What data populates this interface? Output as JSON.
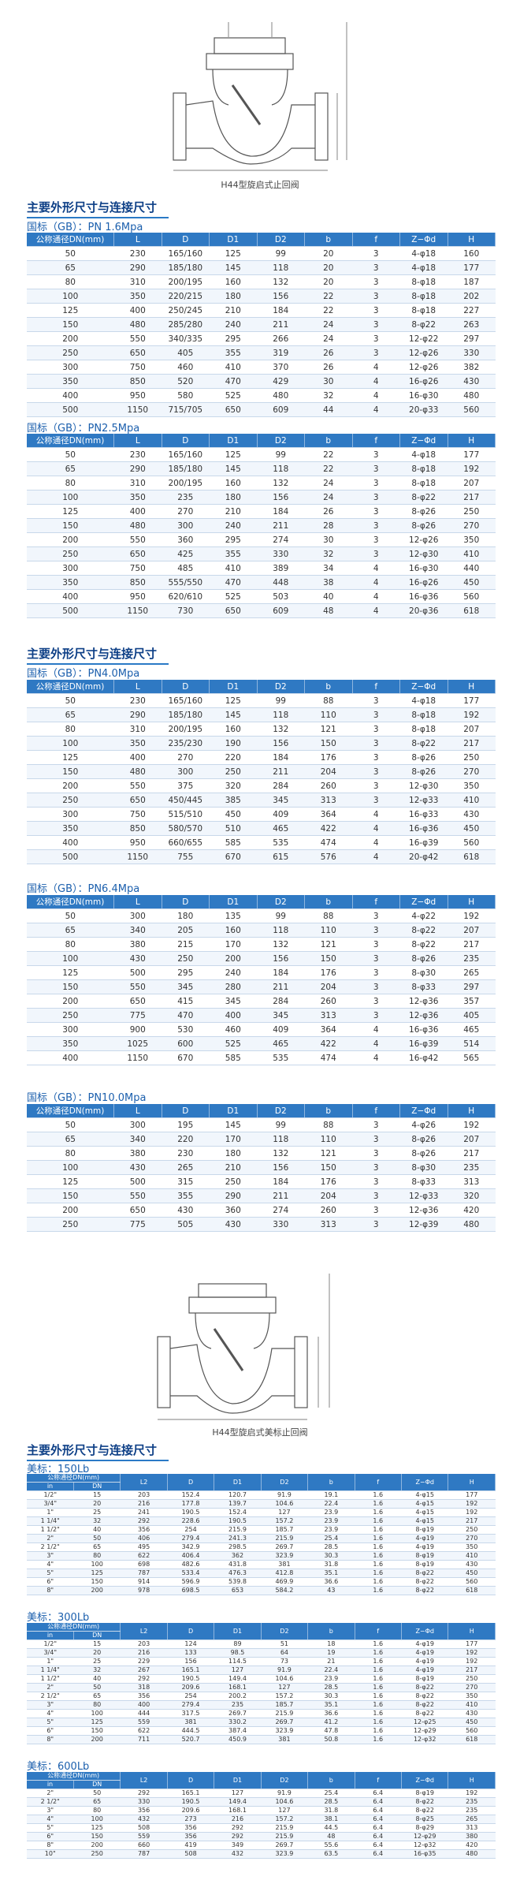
{
  "figure_1": {
    "caption": "H44型旋启式止回阀"
  },
  "section_1": {
    "title": "主要外形尺寸与连接尺寸",
    "tables": [
      {
        "label": "国标（GB）：PN 1.6Mpa",
        "columns": [
          "公称通径DN(mm)",
          "L",
          "D",
          "D1",
          "D2",
          "b",
          "f",
          "Z−Φd",
          "H"
        ],
        "rows": [
          [
            50,
            230,
            "165/160",
            125,
            99,
            20,
            3,
            "4-φ18",
            160
          ],
          [
            65,
            290,
            "185/180",
            145,
            118,
            20,
            3,
            "4-φ18",
            177
          ],
          [
            80,
            310,
            "200/195",
            160,
            132,
            20,
            3,
            "8-φ18",
            187
          ],
          [
            100,
            350,
            "220/215",
            180,
            156,
            22,
            3,
            "8-φ18",
            202
          ],
          [
            125,
            400,
            "250/245",
            210,
            184,
            22,
            3,
            "8-φ18",
            227
          ],
          [
            150,
            480,
            "285/280",
            240,
            211,
            24,
            3,
            "8-φ22",
            263
          ],
          [
            200,
            550,
            "340/335",
            295,
            266,
            24,
            3,
            "12-φ22",
            297
          ],
          [
            250,
            650,
            405,
            355,
            319,
            26,
            3,
            "12-φ26",
            330
          ],
          [
            300,
            750,
            460,
            410,
            370,
            26,
            4,
            "12-φ26",
            382
          ],
          [
            350,
            850,
            520,
            470,
            429,
            30,
            4,
            "16-φ26",
            430
          ],
          [
            400,
            950,
            580,
            525,
            480,
            32,
            4,
            "16-φ30",
            480
          ],
          [
            500,
            1150,
            "715/705",
            650,
            609,
            44,
            4,
            "20-φ33",
            560
          ]
        ]
      },
      {
        "label": "国标（GB）：PN2.5Mpa",
        "columns": [
          "公称通径DN(mm)",
          "L",
          "D",
          "D1",
          "D2",
          "b",
          "f",
          "Z−Φd",
          "H"
        ],
        "rows": [
          [
            50,
            230,
            "165/160",
            125,
            99,
            22,
            3,
            "4-φ18",
            177
          ],
          [
            65,
            290,
            "185/180",
            145,
            118,
            22,
            3,
            "8-φ18",
            192
          ],
          [
            80,
            310,
            "200/195",
            160,
            132,
            24,
            3,
            "8-φ18",
            207
          ],
          [
            100,
            350,
            235,
            180,
            156,
            24,
            3,
            "8-φ22",
            217
          ],
          [
            125,
            400,
            270,
            210,
            184,
            26,
            3,
            "8-φ26",
            250
          ],
          [
            150,
            480,
            300,
            240,
            211,
            28,
            3,
            "8-φ26",
            270
          ],
          [
            200,
            550,
            360,
            295,
            274,
            30,
            3,
            "12-φ26",
            350
          ],
          [
            250,
            650,
            425,
            355,
            330,
            32,
            3,
            "12-φ30",
            410
          ],
          [
            300,
            750,
            485,
            410,
            389,
            34,
            4,
            "16-φ30",
            440
          ],
          [
            350,
            850,
            "555/550",
            470,
            448,
            38,
            4,
            "16-φ26",
            450
          ],
          [
            400,
            950,
            "620/610",
            525,
            503,
            40,
            4,
            "16-φ36",
            560
          ],
          [
            500,
            1150,
            730,
            650,
            609,
            48,
            4,
            "20-φ36",
            618
          ]
        ]
      }
    ]
  },
  "section_2": {
    "title": "主要外形尺寸与连接尺寸",
    "tables": [
      {
        "label": "国标（GB）：PN4.0Mpa",
        "columns": [
          "公称通径DN(mm)",
          "L",
          "D",
          "D1",
          "D2",
          "b",
          "f",
          "Z−Φd",
          "H"
        ],
        "rows": [
          [
            50,
            230,
            "165/160",
            125,
            99,
            88,
            3,
            "4-φ18",
            177
          ],
          [
            65,
            290,
            "185/180",
            145,
            118,
            110,
            3,
            "8-φ18",
            192
          ],
          [
            80,
            310,
            "200/195",
            160,
            132,
            121,
            3,
            "8-φ18",
            207
          ],
          [
            100,
            350,
            "235/230",
            190,
            156,
            150,
            3,
            "8-φ22",
            217
          ],
          [
            125,
            400,
            270,
            220,
            184,
            176,
            3,
            "8-φ26",
            250
          ],
          [
            150,
            480,
            300,
            250,
            211,
            204,
            3,
            "8-φ26",
            270
          ],
          [
            200,
            550,
            375,
            320,
            284,
            260,
            3,
            "12-φ30",
            350
          ],
          [
            250,
            650,
            "450/445",
            385,
            345,
            313,
            3,
            "12-φ33",
            410
          ],
          [
            300,
            750,
            "515/510",
            450,
            409,
            364,
            4,
            "16-φ33",
            430
          ],
          [
            350,
            850,
            "580/570",
            510,
            465,
            422,
            4,
            "16-φ36",
            450
          ],
          [
            400,
            950,
            "660/655",
            585,
            535,
            474,
            4,
            "16-φ39",
            560
          ],
          [
            500,
            1150,
            755,
            670,
            615,
            576,
            4,
            "20-φ42",
            618
          ]
        ]
      },
      {
        "label": "国标（GB）：PN6.4Mpa",
        "columns": [
          "公称通径DN(mm)",
          "L",
          "D",
          "D1",
          "D2",
          "b",
          "f",
          "Z−Φd",
          "H"
        ],
        "rows": [
          [
            50,
            300,
            180,
            135,
            99,
            88,
            3,
            "4-φ22",
            192
          ],
          [
            65,
            340,
            205,
            160,
            118,
            110,
            3,
            "8-φ22",
            207
          ],
          [
            80,
            380,
            215,
            170,
            132,
            121,
            3,
            "8-φ22",
            217
          ],
          [
            100,
            430,
            250,
            200,
            156,
            150,
            3,
            "8-φ26",
            235
          ],
          [
            125,
            500,
            295,
            240,
            184,
            176,
            3,
            "8-φ30",
            265
          ],
          [
            150,
            550,
            345,
            280,
            211,
            204,
            3,
            "8-φ33",
            297
          ],
          [
            200,
            650,
            415,
            345,
            284,
            260,
            3,
            "12-φ36",
            357
          ],
          [
            250,
            775,
            470,
            400,
            345,
            313,
            3,
            "12-φ36",
            405
          ],
          [
            300,
            900,
            530,
            460,
            409,
            364,
            4,
            "16-φ36",
            465
          ],
          [
            350,
            1025,
            600,
            525,
            465,
            422,
            4,
            "16-φ39",
            514
          ],
          [
            400,
            1150,
            670,
            585,
            535,
            474,
            4,
            "16-φ42",
            565
          ]
        ]
      },
      {
        "label": "国标（GB）：PN10.0Mpa",
        "columns": [
          "公称通径DN(mm)",
          "L",
          "D",
          "D1",
          "D2",
          "b",
          "f",
          "Z−Φd",
          "H"
        ],
        "rows": [
          [
            50,
            300,
            195,
            145,
            99,
            88,
            3,
            "4-φ26",
            192
          ],
          [
            65,
            340,
            220,
            170,
            118,
            110,
            3,
            "8-φ26",
            207
          ],
          [
            80,
            380,
            230,
            180,
            132,
            121,
            3,
            "8-φ26",
            217
          ],
          [
            100,
            430,
            265,
            210,
            156,
            150,
            3,
            "8-φ30",
            235
          ],
          [
            125,
            500,
            315,
            250,
            184,
            176,
            3,
            "8-φ33",
            313
          ],
          [
            150,
            550,
            355,
            290,
            211,
            204,
            3,
            "12-φ33",
            320
          ],
          [
            200,
            650,
            430,
            360,
            274,
            260,
            3,
            "12-φ36",
            420
          ],
          [
            250,
            775,
            505,
            430,
            330,
            313,
            3,
            "12-φ39",
            480
          ]
        ]
      }
    ]
  },
  "figure_2": {
    "caption": "H44型旋启式美标止回阀"
  },
  "section_3": {
    "title": "主要外形尺寸与连接尺寸",
    "tables": [
      {
        "label": "美标：150Lb",
        "group_header": "公称通径DN(mm)",
        "columns": [
          "in",
          "DN",
          "L2",
          "D",
          "D1",
          "D2",
          "b",
          "f",
          "Z−Φd",
          "H"
        ],
        "rows": [
          [
            "1/2\"",
            15,
            203,
            152.4,
            120.7,
            91.9,
            19.1,
            1.6,
            "4-φ15",
            177
          ],
          [
            "3/4\"",
            20,
            216,
            177.8,
            139.7,
            104.6,
            22.4,
            1.6,
            "4-φ15",
            192
          ],
          [
            "1\"",
            25,
            241,
            190.5,
            152.4,
            127,
            23.9,
            1.6,
            "4-φ15",
            192
          ],
          [
            "1 1/4\"",
            32,
            292,
            228.6,
            190.5,
            157.2,
            23.9,
            1.6,
            "4-φ15",
            217
          ],
          [
            "1 1/2\"",
            40,
            356,
            254,
            215.9,
            185.7,
            23.9,
            1.6,
            "8-φ19",
            250
          ],
          [
            "2\"",
            50,
            406,
            279.4,
            241.3,
            215.9,
            25.4,
            1.6,
            "4-φ19",
            270
          ],
          [
            "2 1/2\"",
            65,
            495,
            342.9,
            298.5,
            269.7,
            28.5,
            1.6,
            "4-φ19",
            350
          ],
          [
            "3\"",
            80,
            622,
            406.4,
            362,
            323.9,
            30.3,
            1.6,
            "8-φ19",
            410
          ],
          [
            "4\"",
            100,
            698,
            482.6,
            431.8,
            381,
            31.8,
            1.6,
            "8-φ19",
            430
          ],
          [
            "5\"",
            125,
            787,
            533.4,
            476.3,
            412.8,
            35.1,
            1.6,
            "8-φ22",
            450
          ],
          [
            "6\"",
            150,
            914,
            596.9,
            539.8,
            469.9,
            36.6,
            1.6,
            "8-φ22",
            560
          ],
          [
            "8\"",
            200,
            978,
            698.5,
            653,
            584.2,
            43,
            1.6,
            "8-φ22",
            618
          ]
        ]
      },
      {
        "label": "美标：300Lb",
        "group_header": "公称通径DN(mm)",
        "columns": [
          "in",
          "DN",
          "L2",
          "D",
          "D1",
          "D2",
          "b",
          "f",
          "Z−Φd",
          "H"
        ],
        "rows": [
          [
            "1/2\"",
            15,
            203,
            124,
            89,
            51,
            18,
            1.6,
            "4-φ19",
            177
          ],
          [
            "3/4\"",
            20,
            216,
            133,
            98.5,
            64,
            19,
            1.6,
            "4-φ19",
            192
          ],
          [
            "1\"",
            25,
            229,
            156,
            114.5,
            73,
            21,
            1.6,
            "4-φ19",
            192
          ],
          [
            "1 1/4\"",
            32,
            267,
            165.1,
            127,
            91.9,
            22.4,
            1.6,
            "4-φ19",
            217
          ],
          [
            "1 1/2\"",
            40,
            292,
            190.5,
            149.4,
            104.6,
            23.9,
            1.6,
            "8-φ19",
            250
          ],
          [
            "2\"",
            50,
            318,
            209.6,
            168.1,
            127,
            28.5,
            1.6,
            "8-φ22",
            270
          ],
          [
            "2 1/2\"",
            65,
            356,
            254,
            200.2,
            157.2,
            30.3,
            1.6,
            "8-φ22",
            350
          ],
          [
            "3\"",
            80,
            400,
            279.4,
            235,
            185.7,
            35.1,
            1.6,
            "8-φ22",
            410
          ],
          [
            "4\"",
            100,
            444,
            317.5,
            269.7,
            215.9,
            36.6,
            1.6,
            "8-φ22",
            430
          ],
          [
            "5\"",
            125,
            559,
            381,
            330.2,
            269.7,
            41.2,
            1.6,
            "12-φ25",
            450
          ],
          [
            "6\"",
            150,
            622,
            444.5,
            387.4,
            323.9,
            47.8,
            1.6,
            "12-φ29",
            560
          ],
          [
            "8\"",
            200,
            711,
            520.7,
            450.9,
            381,
            50.8,
            1.6,
            "12-φ32",
            618
          ]
        ]
      },
      {
        "label": "美标：600Lb",
        "group_header": "公称通径DN(mm)",
        "columns": [
          "in",
          "DN",
          "L2",
          "D",
          "D1",
          "D2",
          "b",
          "f",
          "Z−Φd",
          "H"
        ],
        "rows": [
          [
            "2\"",
            50,
            292,
            165.1,
            127,
            91.9,
            25.4,
            6.4,
            "8-φ19",
            192
          ],
          [
            "2 1/2\"",
            65,
            330,
            190.5,
            149.4,
            104.6,
            28.5,
            6.4,
            "8-φ22",
            235
          ],
          [
            "3\"",
            80,
            356,
            209.6,
            168.1,
            127,
            31.8,
            6.4,
            "8-φ22",
            235
          ],
          [
            "4\"",
            100,
            432,
            273,
            216,
            157.2,
            38.1,
            6.4,
            "8-φ25",
            265
          ],
          [
            "5\"",
            125,
            508,
            356,
            292,
            215.9,
            44.5,
            6.4,
            "8-φ29",
            313
          ],
          [
            "6\"",
            150,
            559,
            356,
            292,
            215.9,
            48,
            6.4,
            "12-φ29",
            380
          ],
          [
            "8\"",
            200,
            660,
            419,
            349,
            269.7,
            55.6,
            6.4,
            "12-φ32",
            420
          ],
          [
            "10\"",
            250,
            787,
            508,
            432,
            323.9,
            63.5,
            6.4,
            "16-φ35",
            480
          ]
        ]
      }
    ]
  }
}
